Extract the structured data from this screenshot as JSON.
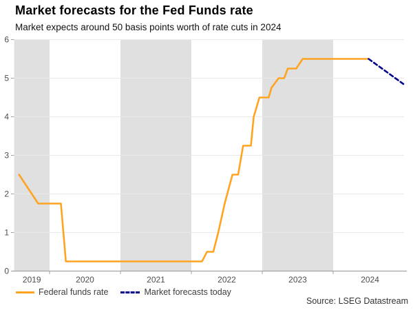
{
  "header": {
    "title": "Market forecasts for the Fed Funds rate",
    "subtitle": "Market expects around 50 basis points worth of rate cuts in 2024"
  },
  "chart_data": {
    "type": "line",
    "title": "Market forecasts for the Fed Funds rate",
    "subtitle": "Market expects around 50 basis points worth of rate cuts in 2024",
    "x_range": [
      2019.5,
      2025.0
    ],
    "y_range": [
      0,
      6
    ],
    "y_ticks": [
      0,
      1,
      2,
      3,
      4,
      5,
      6
    ],
    "x_tick_boundaries": [
      2020,
      2021,
      2022,
      2023,
      2024
    ],
    "x_tick_labels": [
      {
        "label": "2019",
        "x": 2019.75
      },
      {
        "label": "2020",
        "x": 2020.5
      },
      {
        "label": "2021",
        "x": 2021.5
      },
      {
        "label": "2022",
        "x": 2022.5
      },
      {
        "label": "2023",
        "x": 2023.5
      },
      {
        "label": "2024",
        "x": 2024.52
      }
    ],
    "shaded_bands": [
      [
        2019.5,
        2020.0
      ],
      [
        2021.0,
        2022.0
      ],
      [
        2023.0,
        2024.0
      ]
    ],
    "colors": {
      "band": "#e0e0e0",
      "grid": "#e9e9e9",
      "axis": "#a3a3a3",
      "tick_text": "#4d4d4d",
      "federal_funds_rate": "#FFA320",
      "market_forecast": "#00008B"
    },
    "grid": true,
    "legend_position": "bottom-left",
    "series": [
      {
        "name": "Federal funds rate",
        "style": "solid",
        "color": "#FFA320",
        "points": [
          [
            2019.57,
            2.5
          ],
          [
            2019.84,
            1.75
          ],
          [
            2020.16,
            1.75
          ],
          [
            2020.23,
            0.25
          ],
          [
            2022.15,
            0.25
          ],
          [
            2022.22,
            0.5
          ],
          [
            2022.31,
            0.5
          ],
          [
            2022.38,
            1.0
          ],
          [
            2022.47,
            1.75
          ],
          [
            2022.58,
            2.5
          ],
          [
            2022.66,
            2.5
          ],
          [
            2022.73,
            3.25
          ],
          [
            2022.84,
            3.25
          ],
          [
            2022.88,
            4.0
          ],
          [
            2022.96,
            4.5
          ],
          [
            2023.09,
            4.5
          ],
          [
            2023.13,
            4.75
          ],
          [
            2023.23,
            5.0
          ],
          [
            2023.31,
            5.0
          ],
          [
            2023.36,
            5.25
          ],
          [
            2023.48,
            5.25
          ],
          [
            2023.57,
            5.5
          ],
          [
            2024.5,
            5.5
          ]
        ]
      },
      {
        "name": "Market forecasts today",
        "style": "dashed",
        "color": "#00008B",
        "points": [
          [
            2024.5,
            5.5
          ],
          [
            2024.99,
            4.85
          ]
        ]
      }
    ]
  },
  "legend": {
    "items": [
      {
        "label": "Federal funds rate",
        "color": "#FFA320",
        "style": "solid"
      },
      {
        "label": "Market forecasts today",
        "color": "#00008B",
        "style": "dashed"
      }
    ]
  },
  "footer": {
    "source": "Source: LSEG Datastream"
  }
}
